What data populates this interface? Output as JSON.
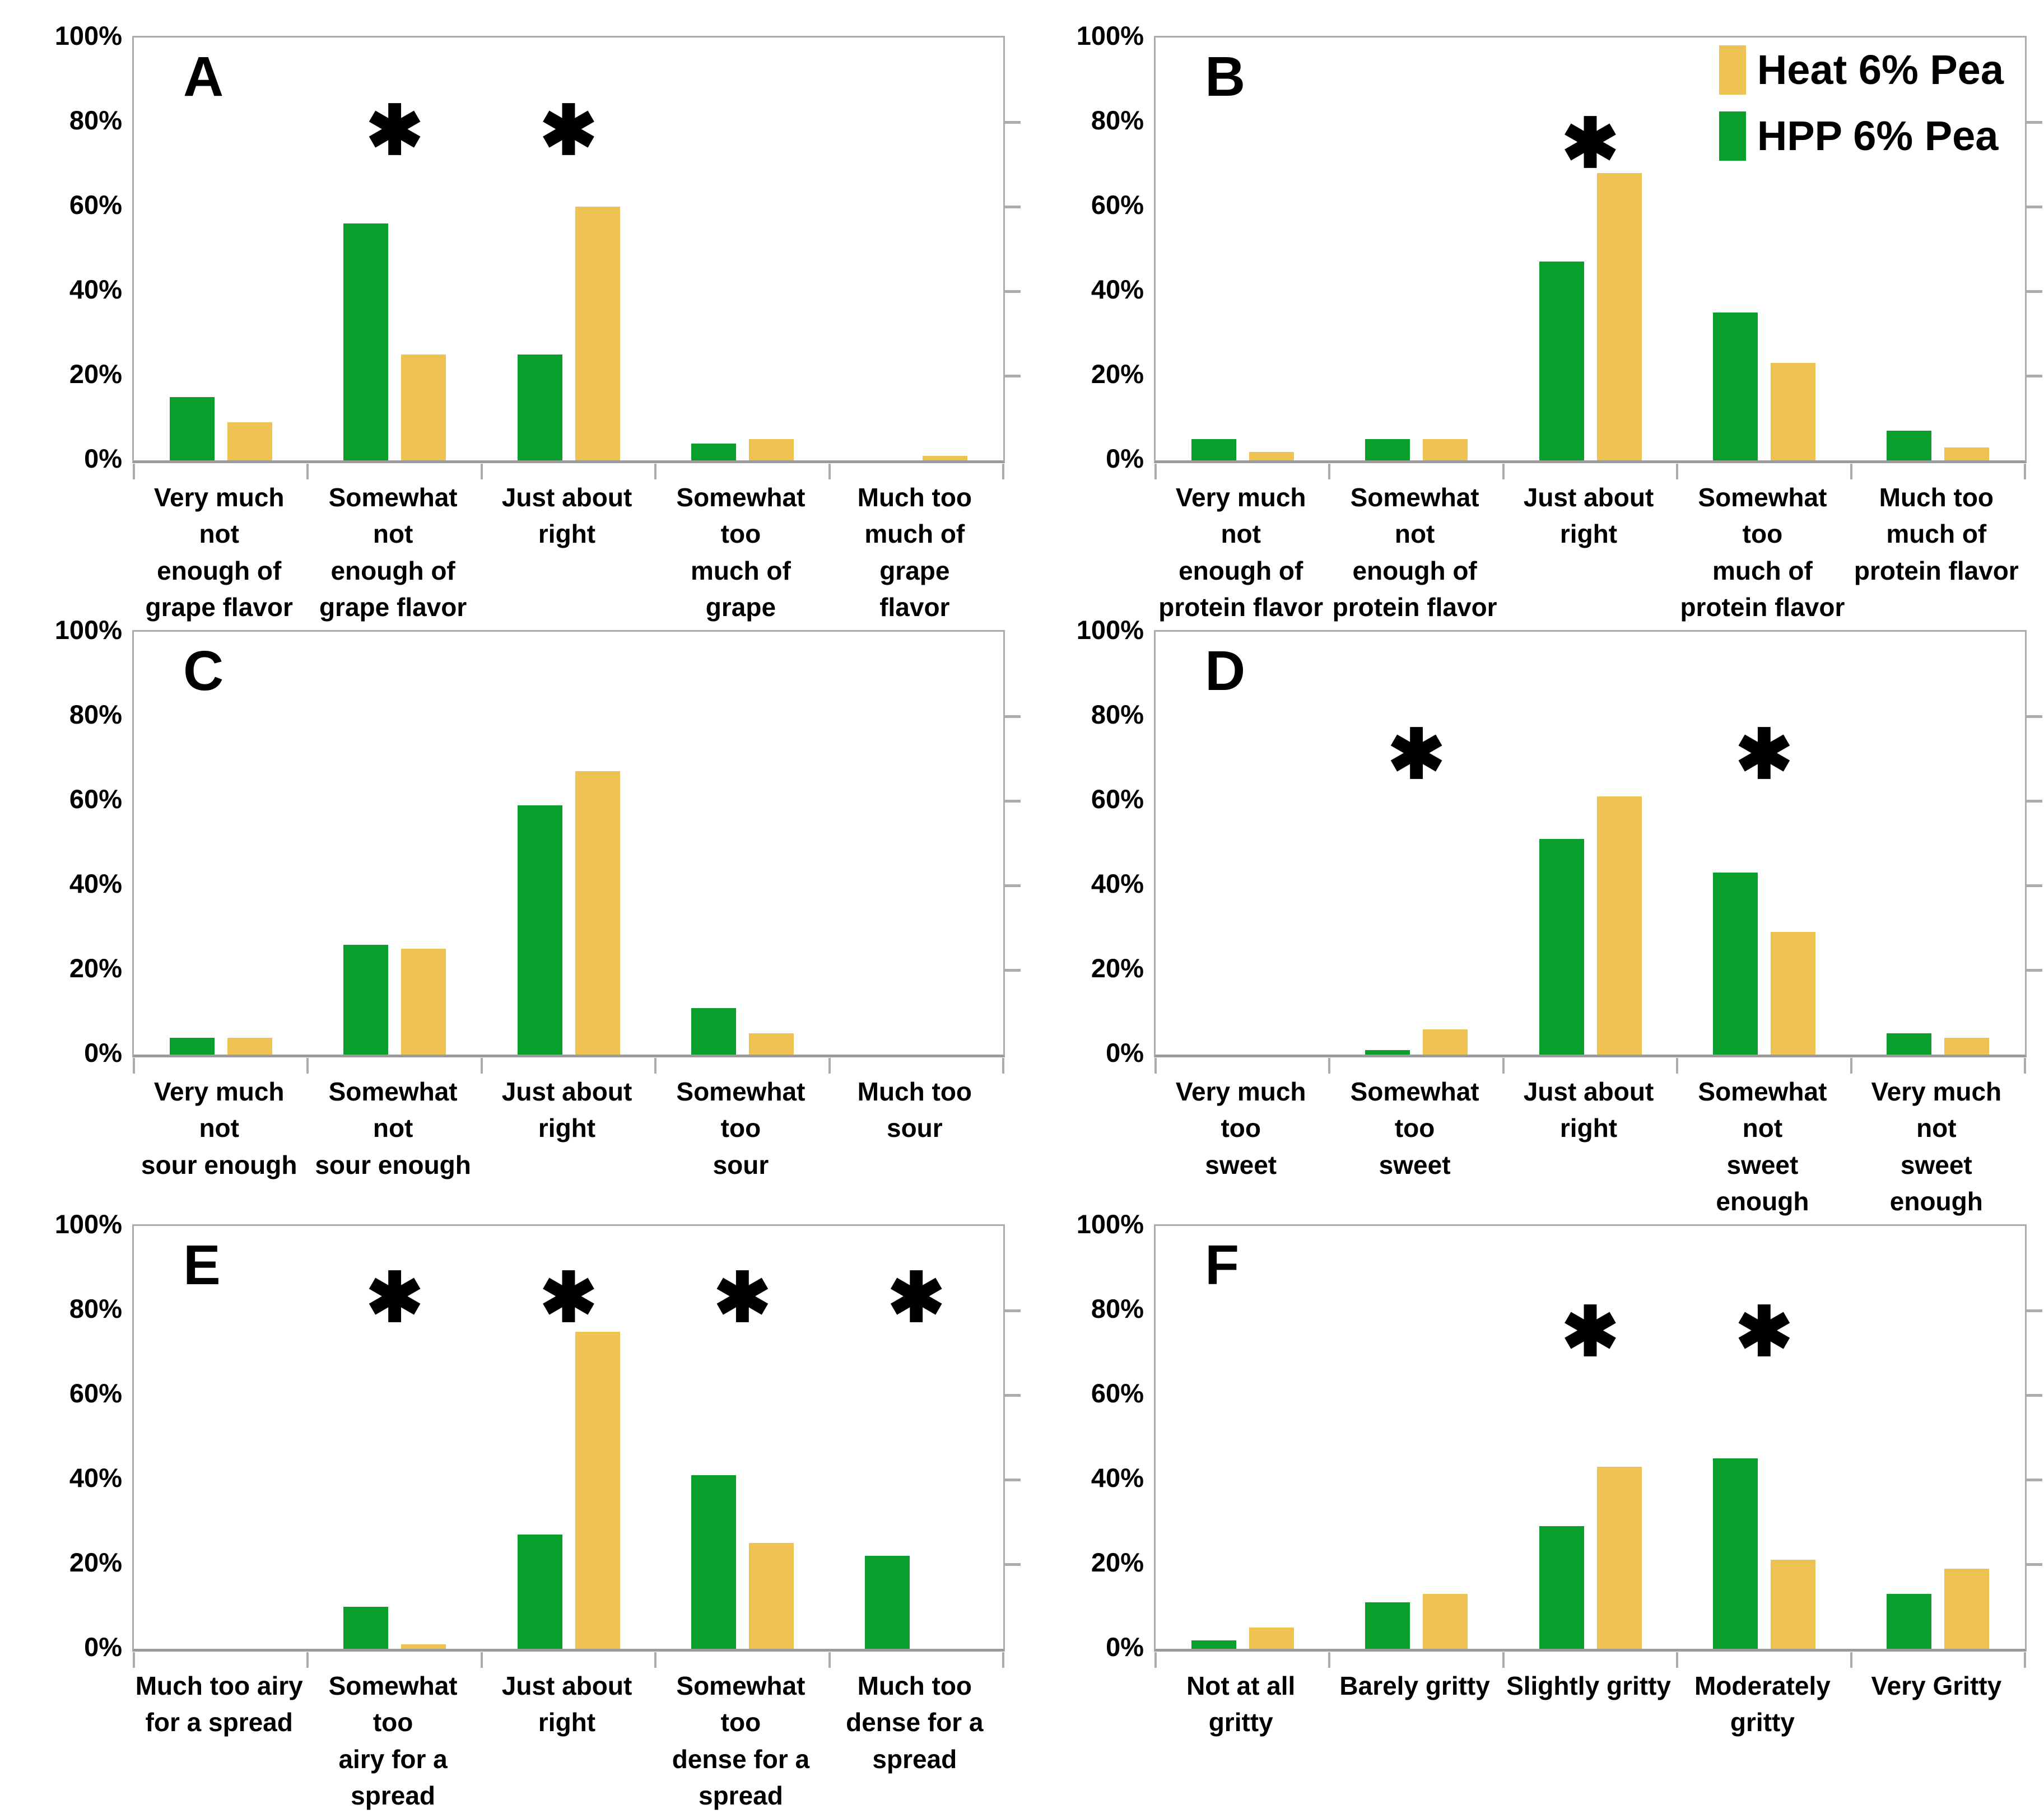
{
  "figure": {
    "type": "six-panel grouped bar figure",
    "panel_letters": [
      "A",
      "B",
      "C",
      "D",
      "E",
      "F"
    ],
    "asterisk_char": "✱"
  },
  "colors": {
    "heat_yellow": "#EEC353",
    "hpp_green": "#0A9E2D",
    "axis_gray": "#ACACAC",
    "text_black": "#000000"
  },
  "legend": {
    "location": "panel B, inside plot, top-right",
    "entries": [
      {
        "label": "Heat 6% Pea",
        "color": "#EEC353"
      },
      {
        "label": "HPP 6% Pea",
        "color": "#0A9E2D"
      }
    ]
  },
  "y_axis": {
    "ticks": [
      "100%",
      "80%",
      "60%",
      "40%",
      "20%",
      "0%"
    ],
    "min": 0,
    "max": 100,
    "grid": false
  },
  "chart_data": [
    {
      "type": "bar",
      "panel": "A",
      "categories": [
        "Very much not\nenough of\ngrape flavor",
        "Somewhat not\nenough of\ngrape flavor",
        "Just about right",
        "Somewhat too\nmuch of grape\nflavor",
        "Much too\nmuch of grape\nflavor"
      ],
      "series": [
        {
          "name": "HPP 6% Pea",
          "color": "#0A9E2D",
          "values": [
            15,
            56,
            25,
            4,
            0
          ]
        },
        {
          "name": "Heat 6% Pea",
          "color": "#EEC353",
          "values": [
            9,
            25,
            60,
            5,
            1
          ]
        }
      ],
      "asterisks": [
        {
          "category_index": 1,
          "y_pct": 78
        },
        {
          "category_index": 2,
          "y_pct": 78
        }
      ],
      "ylim": [
        0,
        100
      ],
      "show_legend": false
    },
    {
      "type": "bar",
      "panel": "B",
      "categories": [
        "Very much not\nenough of\nprotein flavor",
        "Somewhat not\nenough of\nprotein flavor",
        "Just about\nright",
        "Somewhat too\nmuch of\nprotein flavor",
        "Much too\nmuch of\nprotein flavor"
      ],
      "series": [
        {
          "name": "HPP 6% Pea",
          "color": "#0A9E2D",
          "values": [
            5,
            5,
            47,
            35,
            7
          ]
        },
        {
          "name": "Heat 6% Pea",
          "color": "#EEC353",
          "values": [
            2,
            5,
            68,
            23,
            3
          ]
        }
      ],
      "asterisks": [
        {
          "category_index": 2,
          "y_pct": 75
        }
      ],
      "ylim": [
        0,
        100
      ],
      "show_legend": true
    },
    {
      "type": "bar",
      "panel": "C",
      "categories": [
        "Very much not\nsour enough",
        "Somewhat not\nsour enough",
        "Just about\nright",
        "Somewhat too\nsour",
        "Much too sour"
      ],
      "series": [
        {
          "name": "HPP 6% Pea",
          "color": "#0A9E2D",
          "values": [
            4,
            26,
            59,
            11,
            0
          ]
        },
        {
          "name": "Heat 6% Pea",
          "color": "#EEC353",
          "values": [
            4,
            25,
            67,
            5,
            0
          ]
        }
      ],
      "asterisks": [],
      "ylim": [
        0,
        100
      ],
      "show_legend": false
    },
    {
      "type": "bar",
      "panel": "D",
      "categories": [
        "Very much too\nsweet",
        "Somewhat too\nsweet",
        "Just about\nright",
        "Somewhat not\nsweet enough",
        "Very much not\nsweet enough"
      ],
      "series": [
        {
          "name": "HPP 6% Pea",
          "color": "#0A9E2D",
          "values": [
            0,
            1,
            51,
            43,
            5
          ]
        },
        {
          "name": "Heat 6% Pea",
          "color": "#EEC353",
          "values": [
            0,
            6,
            61,
            29,
            4
          ]
        }
      ],
      "asterisks": [
        {
          "category_index": 1,
          "y_pct": 71
        },
        {
          "category_index": 3,
          "y_pct": 71
        }
      ],
      "ylim": [
        0,
        100
      ],
      "show_legend": false
    },
    {
      "type": "bar",
      "panel": "E",
      "categories": [
        "Much too airy\nfor a spread",
        "Somewhat too\nairy for a\nspread",
        "Just about right",
        "Somewhat too\ndense for a\nspread",
        "Much too\ndense for a\nspread"
      ],
      "series": [
        {
          "name": "HPP 6% Pea",
          "color": "#0A9E2D",
          "values": [
            0,
            10,
            27,
            41,
            22
          ]
        },
        {
          "name": "Heat 6% Pea",
          "color": "#EEC353",
          "values": [
            0,
            1,
            75,
            25,
            0
          ]
        }
      ],
      "asterisks": [
        {
          "category_index": 1,
          "y_pct": 83
        },
        {
          "category_index": 2,
          "y_pct": 83
        },
        {
          "category_index": 3,
          "y_pct": 83
        },
        {
          "category_index": 4,
          "y_pct": 83
        }
      ],
      "ylim": [
        0,
        100
      ],
      "show_legend": false
    },
    {
      "type": "bar",
      "panel": "F",
      "categories": [
        "Not at all gritty",
        "Barely gritty",
        "Slightly gritty",
        "Moderately\ngritty",
        "Very Gritty"
      ],
      "series": [
        {
          "name": "HPP 6% Pea",
          "color": "#0A9E2D",
          "values": [
            2,
            11,
            29,
            45,
            13
          ]
        },
        {
          "name": "Heat 6% Pea",
          "color": "#EEC353",
          "values": [
            5,
            13,
            43,
            21,
            19
          ]
        }
      ],
      "asterisks": [
        {
          "category_index": 2,
          "y_pct": 75
        },
        {
          "category_index": 3,
          "y_pct": 75
        }
      ],
      "ylim": [
        0,
        100
      ],
      "show_legend": false
    }
  ]
}
